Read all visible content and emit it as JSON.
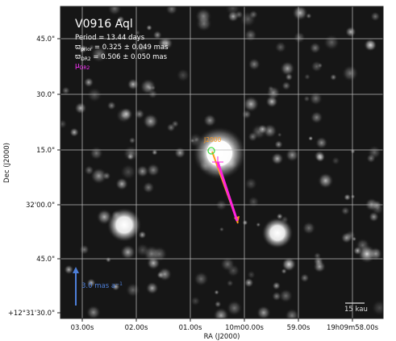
{
  "title": "V0916 Aql",
  "info": {
    "period": "Period =  13.44 days",
    "w_prior_sym": "ϖ",
    "w_prior_sub": "prior",
    "w_prior_val": " = 0.325 ± 0.049 mas",
    "w_dr2_sym": "ϖ",
    "w_dr2_sub": "DR2",
    "w_dr2_val": " = 0.506 ± 0.050 mas",
    "mu_sym": "μ",
    "mu_sub": "DR2"
  },
  "annotation_epoch": "J2000",
  "scale_arrow": "3.0 mas a",
  "scale_arrow_exp": "−1",
  "scale_bar": "15 kau",
  "axes": {
    "xlabel": "RA (J2000)",
    "ylabel": "Dec (J2000)",
    "x_ticks": [
      "03.00s",
      "02.00s",
      "01.00s",
      "10m00.00s",
      "59.00s",
      "19h09m58.00s"
    ],
    "y_ticks": [
      "45.0\"",
      "30.0\"",
      "15.0\"",
      "32'00.0\"",
      "45.0\"",
      "+12°31'30.0\""
    ]
  },
  "colors": {
    "title": "#ffffff",
    "info": "#ffffff",
    "mu_dr2": "#ff33ff",
    "orange": "#ff9a1f",
    "magenta": "#ff22dd",
    "green": "#44dd44",
    "blue_arrow": "#4d7fd9",
    "grid": "#b9b9b9"
  }
}
